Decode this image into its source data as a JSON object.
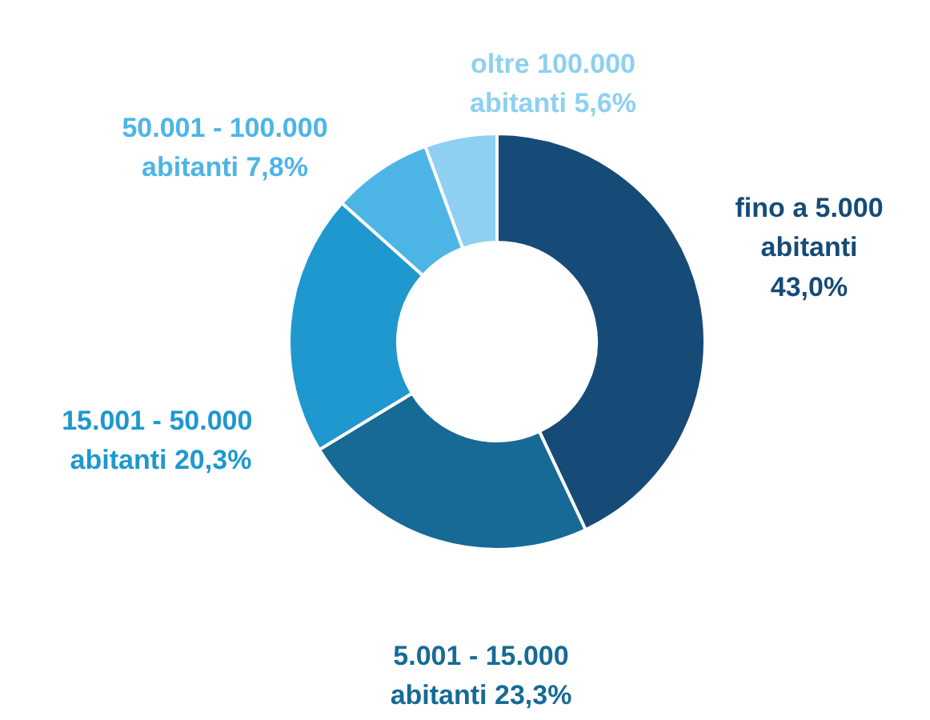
{
  "chart_data": {
    "type": "donut",
    "categories": [
      "fino a 5.000 abitanti",
      "5.001 - 15.000 abitanti",
      "15.001 -  50.000 abitanti",
      "50.001 - 100.000 abitanti",
      "oltre 100.000 abitanti"
    ],
    "values": [
      43.0,
      23.3,
      20.3,
      7.8,
      5.6
    ],
    "value_labels": [
      "43,0%",
      "23,3%",
      "20,3%",
      "7,8%",
      "5,6%"
    ],
    "colors": [
      "#164b78",
      "#176a96",
      "#1e98cf",
      "#4db5e6",
      "#8dd0f1"
    ]
  }
}
